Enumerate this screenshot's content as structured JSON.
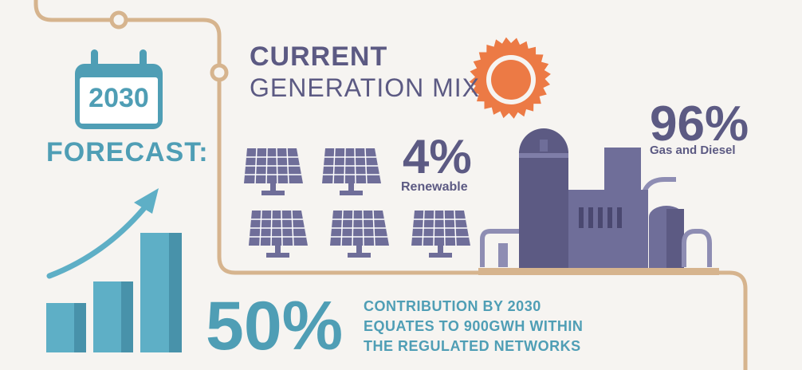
{
  "generation": {
    "title_bold": "CURRENT",
    "title_rest": "GENERATION MIX",
    "renewable": {
      "value": "4%",
      "label": "Renewable"
    },
    "gas_diesel": {
      "value": "96%",
      "label": "Gas and Diesel"
    }
  },
  "forecast": {
    "year": "2030",
    "label": "FORECAST:",
    "percent": "50%",
    "description_lines": [
      "CONTRIBUTION BY 2030",
      "EQUATES TO 900GWH WITHIN",
      "THE REGULATED NETWORKS"
    ]
  },
  "colors": {
    "teal": "#4f9eb5",
    "purple": "#5c5a83",
    "line": "#d6b48e",
    "sun": "#ec7a45",
    "plant": "#6f6e99"
  },
  "icons": [
    "calendar-icon",
    "growth-arrow-icon",
    "bar-chart-icon",
    "solar-panel-icon",
    "sun-icon",
    "power-plant-icon"
  ]
}
